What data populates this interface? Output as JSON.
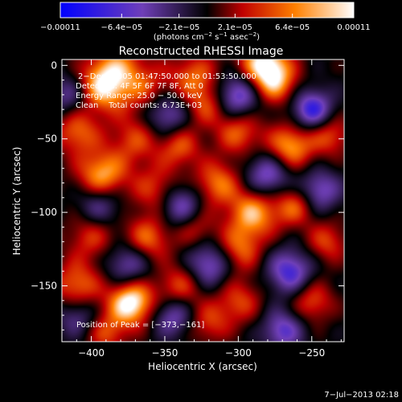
{
  "chart_data": {
    "type": "heatmap",
    "title": "Reconstructed RHESSI Image",
    "xlabel": "Heliocentric X (arcsec)",
    "ylabel": "Heliocentric Y (arcsec)",
    "xlim": [
      -420,
      -228
    ],
    "ylim": [
      -188,
      4
    ],
    "x_ticks": [
      -400,
      -350,
      -300,
      -250
    ],
    "x_tick_labels": [
      "−400",
      "−350",
      "−300",
      "−250"
    ],
    "y_ticks": [
      0,
      -50,
      -100,
      -150
    ],
    "y_tick_labels": [
      "0",
      "−50",
      "−100",
      "−150"
    ],
    "colorbar": {
      "range": [
        -0.00011,
        0.00011
      ],
      "tick_values": [
        -0.00011,
        -6.4e-05,
        -2.1e-05,
        2.1e-05,
        6.4e-05,
        0.00011
      ],
      "tick_labels": [
        "−0.00011",
        "−6.4e−05",
        "−2.1e−05",
        "2.1e−05",
        "6.4e−05",
        "0.00011"
      ],
      "units_label": "(photons cm",
      "units_sup1": "−2",
      "units_mid": " s",
      "units_sup2": "−1",
      "units_end": " asec",
      "units_sup3": "−2",
      "units_close": ")"
    },
    "annotations": [
      "2−Dec−2005 01:47:50.000 to 01:53:50.000",
      "Detectors: 4F 5F 6F 7F 8F, Att 0",
      "Energy Range: 25.0 − 50.0 keV",
      "Clean    Total counts: 6.73E+03"
    ],
    "peak_label": "Position of Peak = [−373,−161]",
    "peak_position": [
      -373,
      -161
    ],
    "sources": [
      {
        "x": -382,
        "y": -2,
        "amp": 0.6,
        "s": 14
      },
      {
        "x": -393,
        "y": -15,
        "amp": 0.75,
        "s": 12
      },
      {
        "x": -360,
        "y": -18,
        "amp": 0.45,
        "s": 12
      },
      {
        "x": -330,
        "y": -8,
        "amp": 0.6,
        "s": 12
      },
      {
        "x": -322,
        "y": -28,
        "amp": 0.45,
        "s": 10
      },
      {
        "x": -283,
        "y": 1,
        "amp": 0.95,
        "s": 12
      },
      {
        "x": -275,
        "y": -12,
        "amp": 0.6,
        "s": 11
      },
      {
        "x": -410,
        "y": -45,
        "amp": 0.6,
        "s": 11
      },
      {
        "x": -370,
        "y": -50,
        "amp": 0.5,
        "s": 12
      },
      {
        "x": -340,
        "y": -55,
        "amp": 0.55,
        "s": 10
      },
      {
        "x": -300,
        "y": -45,
        "amp": 0.6,
        "s": 11
      },
      {
        "x": -265,
        "y": -55,
        "amp": 0.8,
        "s": 11
      },
      {
        "x": -238,
        "y": -47,
        "amp": 0.55,
        "s": 10
      },
      {
        "x": -393,
        "y": -75,
        "amp": 0.85,
        "s": 12
      },
      {
        "x": -355,
        "y": -85,
        "amp": 0.55,
        "s": 12
      },
      {
        "x": -315,
        "y": -80,
        "amp": 0.65,
        "s": 11
      },
      {
        "x": -290,
        "y": -100,
        "amp": 0.8,
        "s": 12
      },
      {
        "x": -262,
        "y": -95,
        "amp": 0.6,
        "s": 10
      },
      {
        "x": -400,
        "y": -115,
        "amp": 0.5,
        "s": 12
      },
      {
        "x": -362,
        "y": -118,
        "amp": 0.65,
        "s": 11
      },
      {
        "x": -330,
        "y": -110,
        "amp": 0.45,
        "s": 10
      },
      {
        "x": -300,
        "y": -125,
        "amp": 0.6,
        "s": 11
      },
      {
        "x": -240,
        "y": -120,
        "amp": 0.5,
        "s": 10
      },
      {
        "x": -410,
        "y": -150,
        "amp": 0.65,
        "s": 12
      },
      {
        "x": -373,
        "y": -161,
        "amp": 1.1,
        "s": 11
      },
      {
        "x": -340,
        "y": -150,
        "amp": 0.55,
        "s": 11
      },
      {
        "x": -300,
        "y": -160,
        "amp": 0.5,
        "s": 11
      },
      {
        "x": -250,
        "y": -160,
        "amp": 0.55,
        "s": 10
      },
      {
        "x": -320,
        "y": -175,
        "amp": 0.45,
        "s": 10
      },
      {
        "x": -390,
        "y": -182,
        "amp": 0.5,
        "s": 10
      },
      {
        "x": -350,
        "y": -32,
        "amp": -0.7,
        "s": 11
      },
      {
        "x": -300,
        "y": -20,
        "amp": -0.8,
        "s": 11
      },
      {
        "x": -250,
        "y": -30,
        "amp": -0.85,
        "s": 10
      },
      {
        "x": -395,
        "y": -95,
        "amp": -0.6,
        "s": 11
      },
      {
        "x": -340,
        "y": -95,
        "amp": -0.75,
        "s": 11
      },
      {
        "x": -280,
        "y": -75,
        "amp": -0.7,
        "s": 11
      },
      {
        "x": -245,
        "y": -85,
        "amp": -0.65,
        "s": 10
      },
      {
        "x": -375,
        "y": -135,
        "amp": -0.6,
        "s": 11
      },
      {
        "x": -320,
        "y": -135,
        "amp": -0.7,
        "s": 11
      },
      {
        "x": -265,
        "y": -140,
        "amp": -0.75,
        "s": 11
      },
      {
        "x": -345,
        "y": -170,
        "amp": -0.6,
        "s": 10
      },
      {
        "x": -270,
        "y": -180,
        "amp": -0.65,
        "s": 10
      },
      {
        "x": -410,
        "y": -170,
        "amp": -0.5,
        "s": 10
      },
      {
        "x": -415,
        "y": -20,
        "amp": -0.5,
        "s": 10
      }
    ]
  },
  "footer": {
    "timestamp": "7−Jul−2013 02:18"
  }
}
